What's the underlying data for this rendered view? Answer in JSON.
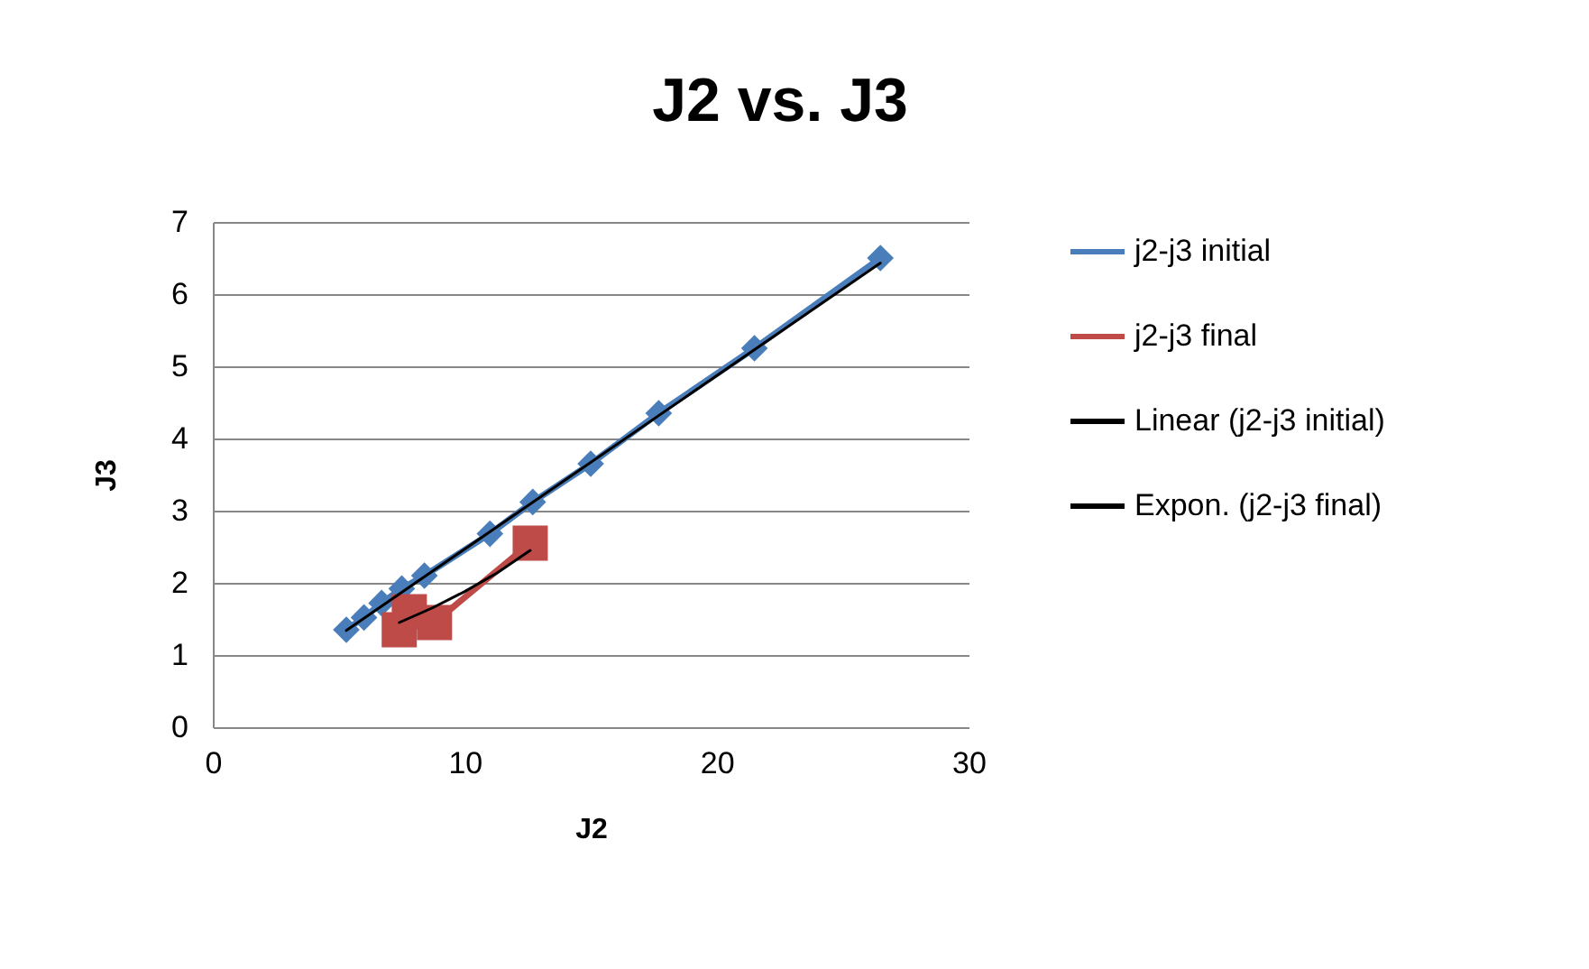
{
  "chart_data": {
    "type": "line",
    "title": "J2 vs. J3",
    "xlabel": "J2",
    "ylabel": "J3",
    "xlim": [
      0,
      30
    ],
    "xticks": [
      0,
      10,
      20,
      30
    ],
    "ylim": [
      0,
      7
    ],
    "yticks": [
      0,
      1,
      2,
      3,
      4,
      5,
      6,
      7
    ],
    "grid": "y",
    "legend": "right",
    "series": [
      {
        "name": "j2-j3 initial",
        "color": "#4a7ebb",
        "marker": "diamond",
        "x": [
          5.3,
          6.0,
          6.7,
          7.5,
          8.4,
          11.0,
          12.7,
          15.0,
          17.7,
          21.5,
          26.5
        ],
        "values": [
          1.35,
          1.52,
          1.72,
          1.92,
          2.1,
          2.68,
          3.12,
          3.65,
          4.35,
          5.25,
          6.5
        ]
      },
      {
        "name": "j2-j3 final",
        "color": "#be4b48",
        "marker": "square",
        "x": [
          7.4,
          7.8,
          8.8,
          12.6
        ],
        "values": [
          1.35,
          1.6,
          1.45,
          2.55
        ]
      },
      {
        "name": "Linear (j2-j3 initial)",
        "color": "#000000",
        "marker": "none",
        "x": [
          5.3,
          26.5
        ],
        "values": [
          1.34,
          6.43
        ]
      },
      {
        "name": "Expon. (j2-j3 final)",
        "color": "#000000",
        "marker": "none",
        "x": [
          7.4,
          8.7,
          10.0,
          11.3,
          12.6
        ],
        "values": [
          1.45,
          1.65,
          1.88,
          2.14,
          2.45
        ]
      }
    ]
  }
}
